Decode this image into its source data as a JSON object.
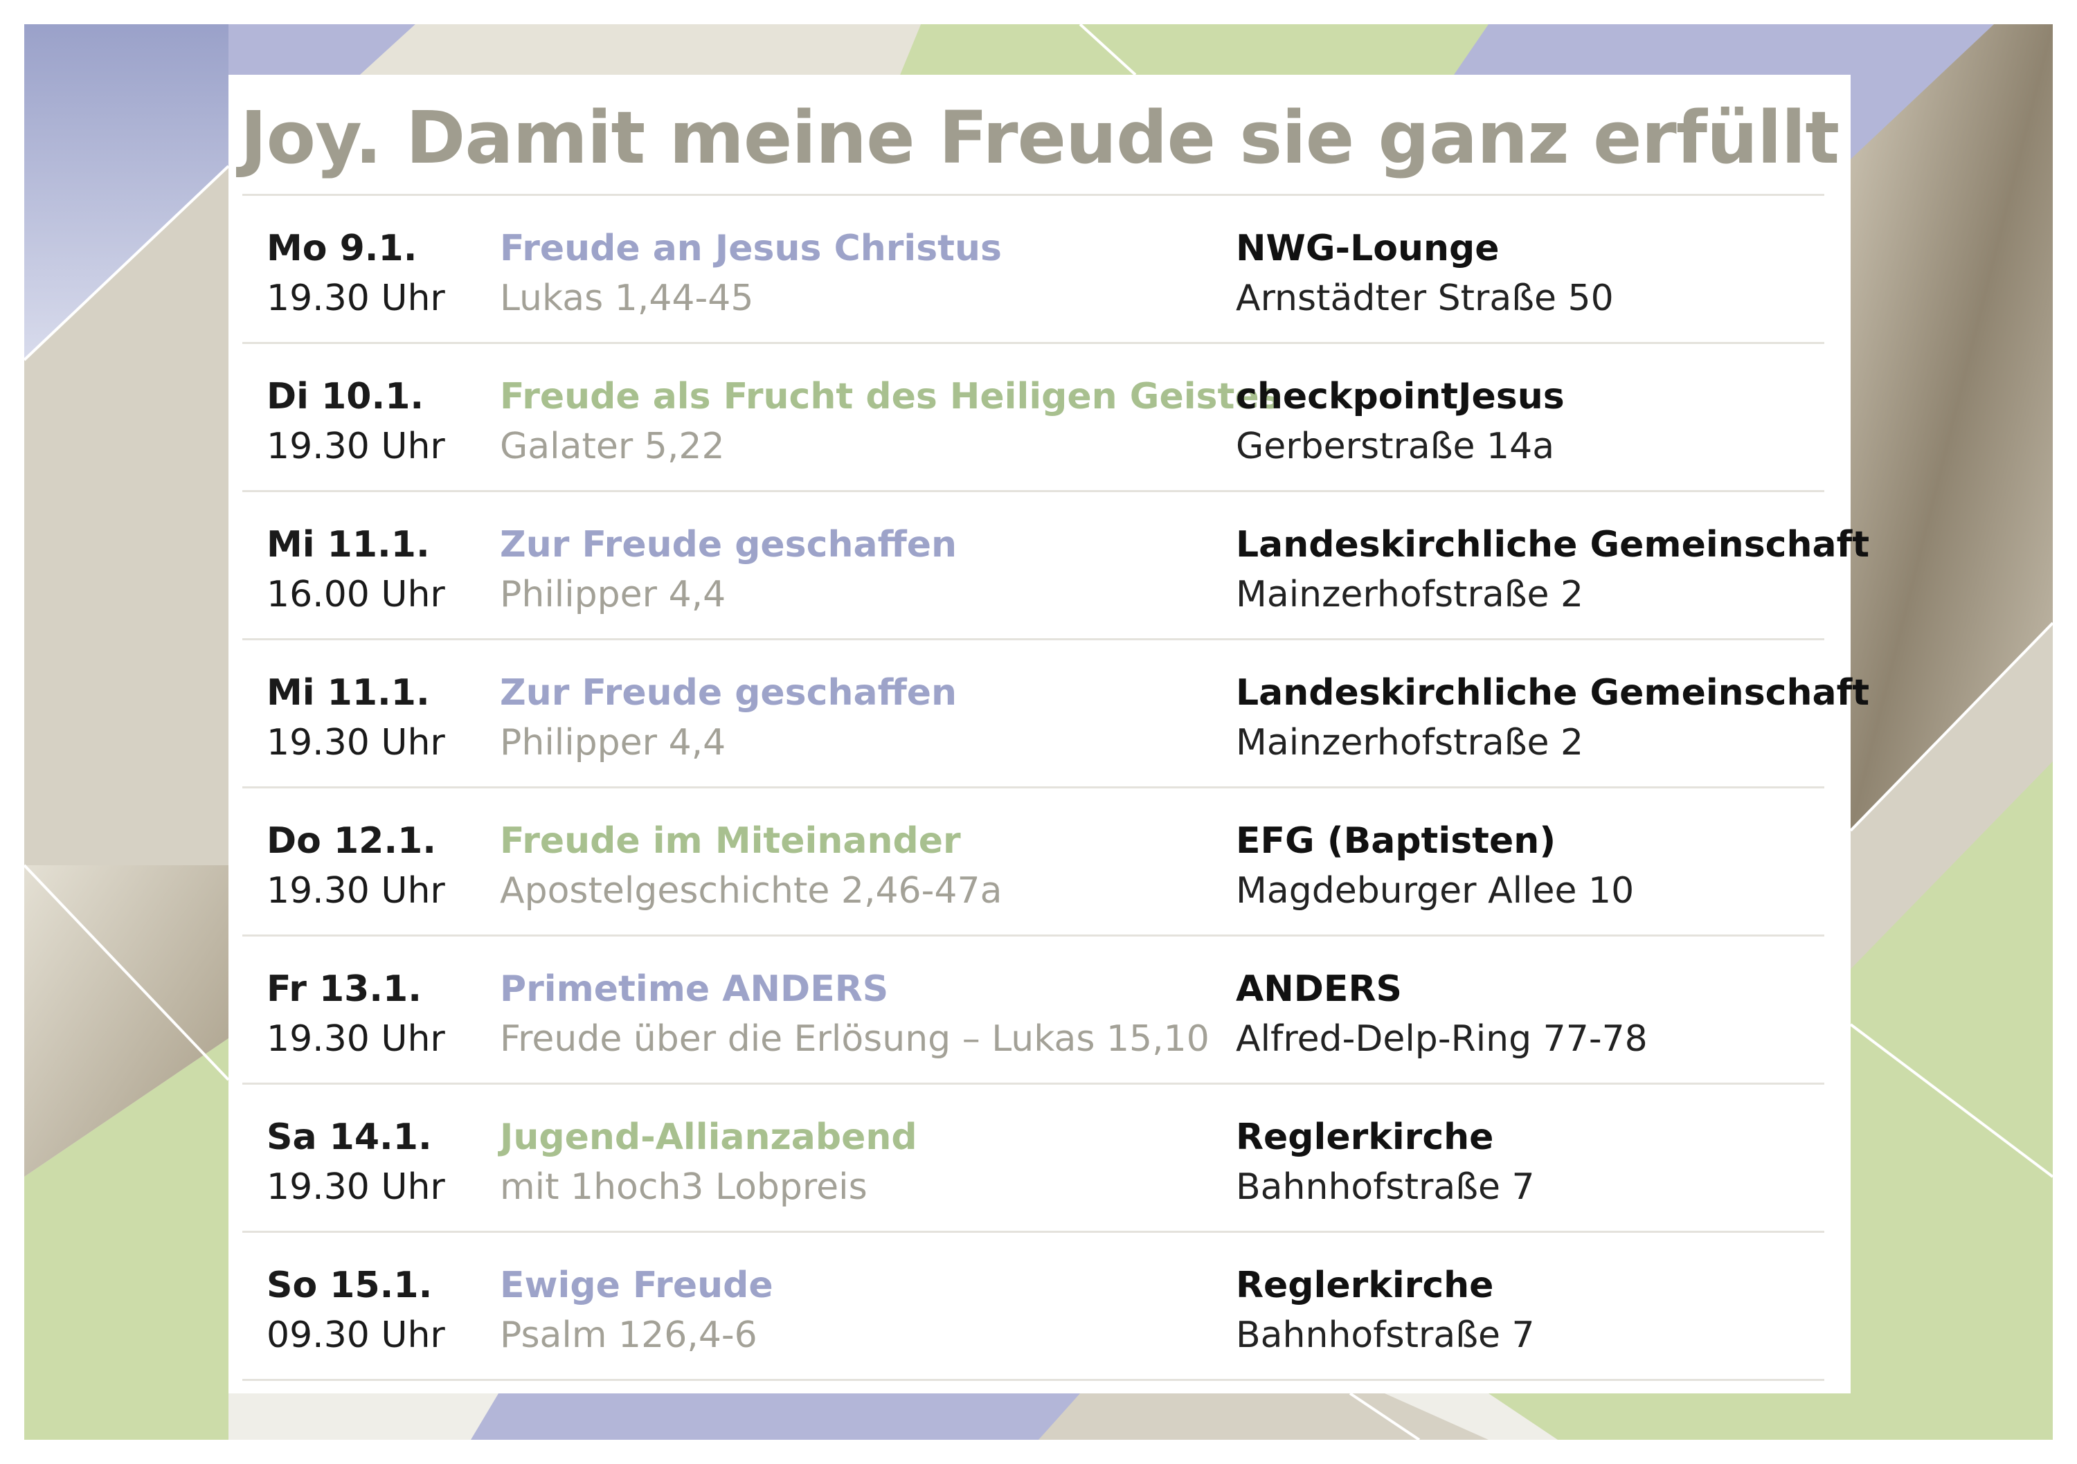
{
  "colors": {
    "title": "#a09d8f",
    "topic_blue": "#9da3c9",
    "topic_green": "#a8c08f",
    "reference": "#a3a197",
    "lavender": "#b3b6d8",
    "sage": "#ccdca9",
    "taupe": "#d6d1c4"
  },
  "title": "Joy. Damit meine Freude sie ganz erfüllt",
  "events": [
    {
      "day": "Mo 9.1.",
      "time": "19.30 Uhr",
      "topic": "Freude an Jesus Christus",
      "topic_color": "blue",
      "reference": "Lukas 1,44-45",
      "venue": "NWG-Lounge",
      "address": "Arnstädter Straße 50"
    },
    {
      "day": "Di 10.1.",
      "time": "19.30 Uhr",
      "topic": "Freude als Frucht des Heiligen Geistes",
      "topic_color": "green",
      "reference": "Galater 5,22",
      "venue": "checkpointJesus",
      "address": "Gerberstraße 14a"
    },
    {
      "day": "Mi 11.1.",
      "time": "16.00 Uhr",
      "topic": "Zur Freude geschaffen",
      "topic_color": "blue",
      "reference": "Philipper 4,4",
      "venue": "Landeskirchliche Gemeinschaft",
      "address": "Mainzerhofstraße 2"
    },
    {
      "day": "Mi 11.1.",
      "time": "19.30 Uhr",
      "topic": "Zur Freude geschaffen",
      "topic_color": "blue",
      "reference": "Philipper 4,4",
      "venue": "Landeskirchliche Gemeinschaft",
      "address": "Mainzerhofstraße 2"
    },
    {
      "day": "Do 12.1.",
      "time": "19.30 Uhr",
      "topic": "Freude im Miteinander",
      "topic_color": "green",
      "reference": "Apostelgeschichte 2,46-47a",
      "venue": "EFG (Baptisten)",
      "address": "Magdeburger Allee 10"
    },
    {
      "day": "Fr 13.1.",
      "time": "19.30 Uhr",
      "topic": "Primetime ANDERS",
      "topic_color": "blue",
      "reference": "Freude über die Erlösung – Lukas 15,10",
      "venue": "ANDERS",
      "address": "Alfred-Delp-Ring 77-78"
    },
    {
      "day": "Sa 14.1.",
      "time": "19.30 Uhr",
      "topic": "Jugend-Allianzabend",
      "topic_color": "green",
      "reference": "mit 1hoch3 Lobpreis",
      "venue": "Reglerkirche",
      "address": "Bahnhofstraße 7"
    },
    {
      "day": "So 15.1.",
      "time": "09.30 Uhr",
      "topic": "Ewige Freude",
      "topic_color": "blue",
      "reference": "Psalm 126,4-6",
      "venue": "Reglerkirche",
      "address": "Bahnhofstraße 7"
    }
  ]
}
